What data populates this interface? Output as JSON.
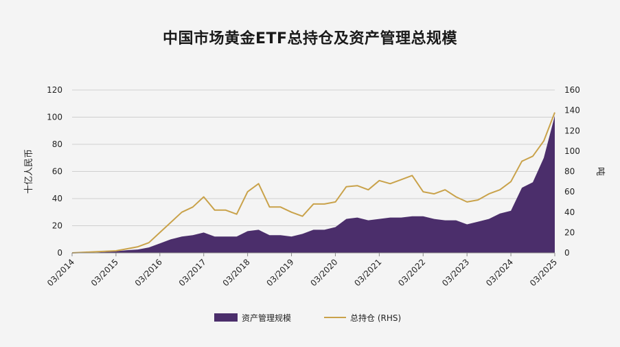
{
  "chart_data": {
    "type": "area+line",
    "title": "中国市场黄金ETF总持仓及资产管理总规模",
    "ylabel_left": "十亿人民币",
    "ylabel_right": "吨",
    "ylim_left": [
      0,
      120
    ],
    "ylim_right": [
      0,
      160
    ],
    "yticks_left": [
      0,
      20,
      40,
      60,
      80,
      100,
      120
    ],
    "yticks_right": [
      0,
      20,
      40,
      60,
      80,
      100,
      120,
      140,
      160
    ],
    "xrange": [
      "2014-03",
      "2025-03"
    ],
    "xticks": [
      "03/2014",
      "03/2015",
      "03/2016",
      "03/2017",
      "03/2018",
      "03/2019",
      "03/2020",
      "03/2021",
      "03/2022",
      "03/2023",
      "03/2024",
      "03/2025"
    ],
    "grid": true,
    "legend_position": "bottom",
    "colors": {
      "aum": "#4b2e6b",
      "holdings": "#c9a24a",
      "grid": "#cfcfcf"
    },
    "series": [
      {
        "name": "资产管理规模",
        "kind": "area",
        "axis": "left",
        "x": [
          "2014-03",
          "2014-09",
          "2015-03",
          "2015-06",
          "2015-09",
          "2015-12",
          "2016-03",
          "2016-06",
          "2016-09",
          "2016-12",
          "2017-03",
          "2017-06",
          "2017-09",
          "2017-12",
          "2018-03",
          "2018-06",
          "2018-09",
          "2018-12",
          "2019-03",
          "2019-06",
          "2019-09",
          "2019-12",
          "2020-03",
          "2020-06",
          "2020-09",
          "2020-12",
          "2021-03",
          "2021-06",
          "2021-09",
          "2021-12",
          "2022-03",
          "2022-06",
          "2022-09",
          "2022-12",
          "2023-03",
          "2023-06",
          "2023-09",
          "2023-12",
          "2024-03",
          "2024-06",
          "2024-09",
          "2024-12",
          "2025-03"
        ],
        "values": [
          0,
          0.2,
          1.2,
          2,
          2.5,
          4,
          7,
          10,
          12,
          13,
          15,
          12,
          12,
          12,
          16,
          17,
          13,
          13,
          12,
          14,
          17,
          17,
          19,
          25,
          26,
          24,
          25,
          26,
          26,
          27,
          27,
          25,
          24,
          24,
          21,
          23,
          25,
          29,
          31,
          48,
          52,
          70,
          101
        ]
      },
      {
        "name": "总持仓 (RHS)",
        "kind": "line",
        "axis": "right",
        "x": [
          "2014-03",
          "2014-09",
          "2015-03",
          "2015-06",
          "2015-09",
          "2015-12",
          "2016-03",
          "2016-06",
          "2016-09",
          "2016-12",
          "2017-03",
          "2017-06",
          "2017-09",
          "2017-12",
          "2018-03",
          "2018-06",
          "2018-09",
          "2018-12",
          "2019-03",
          "2019-06",
          "2019-09",
          "2019-12",
          "2020-03",
          "2020-06",
          "2020-09",
          "2020-12",
          "2021-03",
          "2021-06",
          "2021-09",
          "2021-12",
          "2022-03",
          "2022-06",
          "2022-09",
          "2022-12",
          "2023-03",
          "2023-06",
          "2023-09",
          "2023-12",
          "2024-03",
          "2024-06",
          "2024-09",
          "2024-12",
          "2025-03"
        ],
        "values": [
          0,
          1,
          2,
          4,
          6,
          10,
          20,
          30,
          40,
          45,
          55,
          42,
          42,
          38,
          60,
          68,
          45,
          45,
          40,
          36,
          48,
          48,
          50,
          65,
          66,
          62,
          71,
          68,
          72,
          76,
          60,
          58,
          62,
          55,
          50,
          52,
          58,
          62,
          70,
          90,
          95,
          110,
          138
        ]
      }
    ]
  }
}
